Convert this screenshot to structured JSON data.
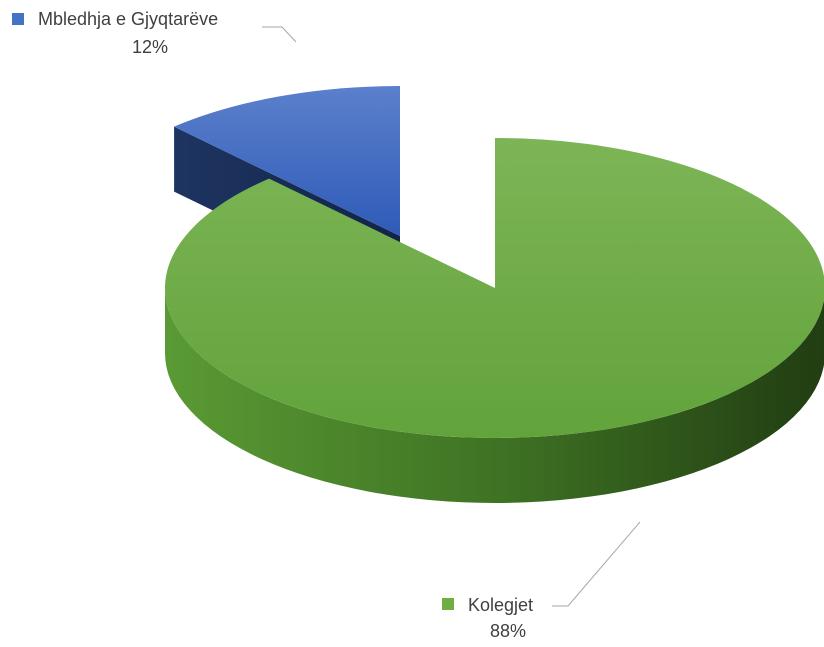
{
  "chart_data": {
    "type": "pie3d",
    "categories": [
      "Mbledhja e Gjyqtarëve",
      "Kolegjet"
    ],
    "values": [
      12,
      88
    ],
    "value_labels": [
      "12%",
      "88%"
    ],
    "colors": [
      "#4472c4",
      "#70ad47"
    ]
  }
}
